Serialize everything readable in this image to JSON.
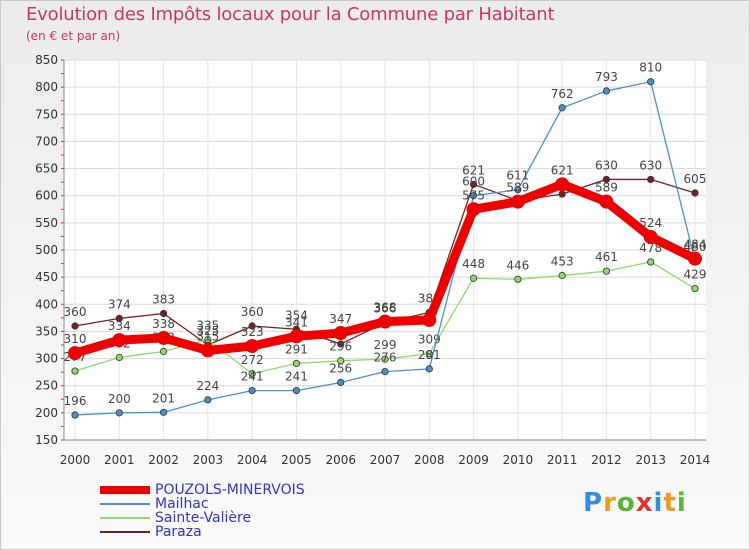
{
  "chart_data": {
    "type": "line",
    "title": "Evolution des Impôts locaux pour la Commune par Habitant",
    "subtitle": "(en € et par an)",
    "xlabel": "",
    "ylabel": "",
    "ylim": [
      150,
      850
    ],
    "yticks": [
      150,
      200,
      250,
      300,
      350,
      400,
      450,
      500,
      550,
      600,
      650,
      700,
      750,
      800,
      850
    ],
    "categories": [
      "2000",
      "2001",
      "2002",
      "2003",
      "2004",
      "2005",
      "2006",
      "2007",
      "2008",
      "2009",
      "2010",
      "2011",
      "2012",
      "2013",
      "2014"
    ],
    "grid": true,
    "legend": "bottom-left",
    "series": [
      {
        "name": "Paraza",
        "color": "#7a1f1f",
        "values": [
          360,
          374,
          383,
          325,
          360,
          354,
          327,
          366,
          385,
          621,
          591,
          603,
          630,
          630,
          605
        ],
        "labels": [
          "360",
          "374",
          "383",
          "325",
          "360",
          "354",
          "",
          "366",
          "385",
          "621",
          "",
          "",
          "630",
          "630",
          "605"
        ]
      },
      {
        "name": "Sainte-Valière",
        "color": "#8fd86a",
        "values": [
          277,
          302,
          313,
          335,
          272,
          291,
          296,
          299,
          309,
          448,
          446,
          453,
          461,
          478,
          429
        ],
        "labels": [
          "277",
          "302",
          "313",
          "335",
          "272",
          "291",
          "296",
          "299",
          "309",
          "448",
          "446",
          "453",
          "461",
          "478",
          "429"
        ]
      },
      {
        "name": "Mailhac",
        "color": "#4a90c8",
        "values": [
          196,
          200,
          201,
          224,
          241,
          241,
          256,
          276,
          281,
          600,
          611,
          762,
          793,
          810,
          480
        ],
        "labels": [
          "196",
          "200",
          "201",
          "224",
          "241",
          "241",
          "256",
          "276",
          "281",
          "600",
          "611",
          "762",
          "793",
          "810",
          "480"
        ]
      },
      {
        "name": "POUZOLS-MINERVOIS",
        "color": "#ee0000",
        "values": [
          310,
          334,
          338,
          315,
          323,
          341,
          347,
          368,
          371,
          575,
          589,
          621,
          589,
          524,
          484
        ],
        "labels": [
          "310",
          "334",
          "338",
          "315",
          "323",
          "341",
          "347",
          "368",
          "",
          "575",
          "589",
          "621",
          "589",
          "524",
          "484"
        ]
      }
    ]
  },
  "legend": {
    "items": [
      {
        "label": "POUZOLS-MINERVOIS",
        "color": "#ee0000",
        "thickness": "thick"
      },
      {
        "label": "Mailhac",
        "color": "#4a90c8",
        "thickness": "thin"
      },
      {
        "label": "Sainte-Valière",
        "color": "#8fd86a",
        "thickness": "thin"
      },
      {
        "label": "Paraza",
        "color": "#7a1f1f",
        "thickness": "thin"
      }
    ]
  },
  "logo": {
    "text": "Proxiti"
  }
}
